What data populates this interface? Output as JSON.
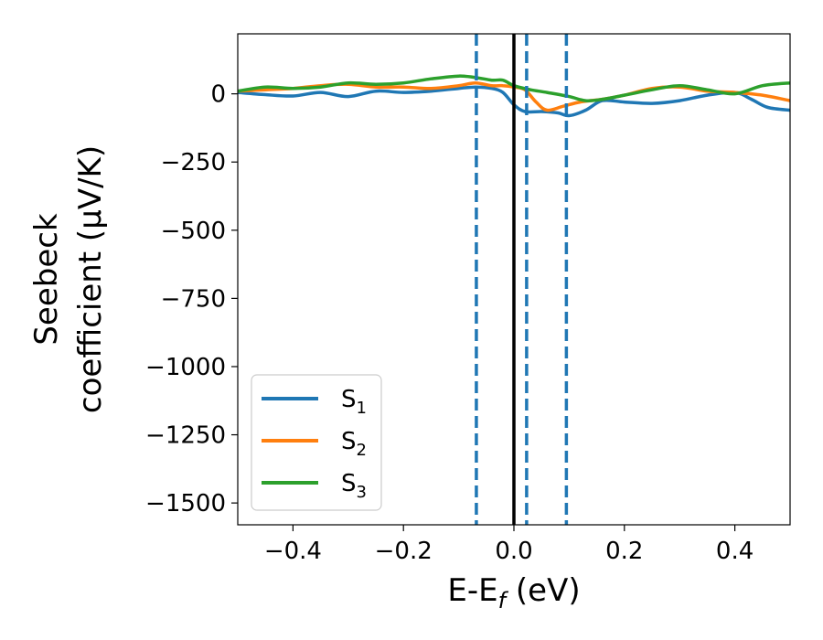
{
  "chart_data": {
    "type": "line",
    "xlabel": "E-E",
    "xlabel_sub": "f",
    "xlabel_unit": " (eV)",
    "ylabel_line1": "Seebeck",
    "ylabel_line2": "coefficient  (μV/K)",
    "xlim": [
      -0.5,
      0.5
    ],
    "ylim": [
      -1580,
      220
    ],
    "xticks": [
      -0.4,
      -0.2,
      0.0,
      0.2,
      0.4
    ],
    "xtick_labels": [
      "−0.4",
      "−0.2",
      "0.0",
      "0.2",
      "0.4"
    ],
    "yticks": [
      0,
      -250,
      -500,
      -750,
      -1000,
      -1250,
      -1500
    ],
    "ytick_labels": [
      "0",
      "−250",
      "−500",
      "−750",
      "−1000",
      "−1250",
      "−1500"
    ],
    "grid": false,
    "legend_position": "lower-left",
    "vertical_lines": [
      {
        "x": 0.0,
        "style": "solid",
        "color": "#000000"
      },
      {
        "x": -0.068,
        "style": "dashed",
        "color": "#1f77b4"
      },
      {
        "x": 0.023,
        "style": "dashed",
        "color": "#1f77b4"
      },
      {
        "x": 0.095,
        "style": "dashed",
        "color": "#1f77b4"
      }
    ],
    "series": [
      {
        "name": "S",
        "sub": "1",
        "color": "#1f77b4",
        "x": [
          -0.5,
          -0.45,
          -0.4,
          -0.35,
          -0.3,
          -0.25,
          -0.2,
          -0.15,
          -0.1,
          -0.07,
          -0.04,
          -0.02,
          0.0,
          0.02,
          0.05,
          0.08,
          0.1,
          0.13,
          0.16,
          0.2,
          0.25,
          0.3,
          0.35,
          0.4,
          0.43,
          0.46,
          0.5
        ],
        "y": [
          5,
          -3,
          -8,
          5,
          -10,
          10,
          5,
          10,
          20,
          25,
          20,
          5,
          -40,
          -65,
          -65,
          -70,
          -80,
          -60,
          -25,
          -30,
          -35,
          -25,
          -5,
          5,
          -20,
          -50,
          -60
        ]
      },
      {
        "name": "S",
        "sub": "2",
        "color": "#ff7f0e",
        "x": [
          -0.5,
          -0.45,
          -0.4,
          -0.35,
          -0.3,
          -0.25,
          -0.2,
          -0.15,
          -0.1,
          -0.07,
          -0.04,
          -0.02,
          0.0,
          0.02,
          0.04,
          0.06,
          0.09,
          0.12,
          0.16,
          0.2,
          0.25,
          0.3,
          0.35,
          0.4,
          0.45,
          0.5
        ],
        "y": [
          10,
          15,
          20,
          30,
          35,
          25,
          25,
          20,
          30,
          40,
          30,
          30,
          25,
          15,
          -30,
          -60,
          -45,
          -30,
          -20,
          -5,
          20,
          25,
          10,
          5,
          -5,
          -25
        ]
      },
      {
        "name": "S",
        "sub": "3",
        "color": "#2ca02c",
        "x": [
          -0.5,
          -0.45,
          -0.4,
          -0.35,
          -0.3,
          -0.25,
          -0.2,
          -0.15,
          -0.1,
          -0.07,
          -0.04,
          -0.02,
          0.0,
          0.03,
          0.06,
          0.1,
          0.13,
          0.16,
          0.2,
          0.25,
          0.3,
          0.35,
          0.4,
          0.45,
          0.5
        ],
        "y": [
          10,
          25,
          20,
          25,
          40,
          35,
          40,
          55,
          65,
          60,
          50,
          50,
          30,
          15,
          5,
          -10,
          -25,
          -20,
          -5,
          15,
          30,
          15,
          0,
          30,
          40
        ]
      }
    ]
  }
}
